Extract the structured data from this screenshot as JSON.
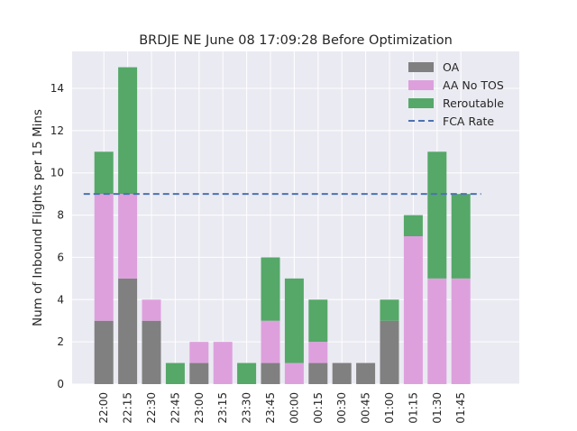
{
  "chart_data": {
    "type": "bar",
    "title": "BRDJE NE June 08 17:09:28 Before Optimization",
    "xlabel": "",
    "ylabel": "Num of Inbound Flights per 15 Mins",
    "ylim": [
      0,
      15.75
    ],
    "yticks": [
      0,
      2,
      4,
      6,
      8,
      10,
      12,
      14
    ],
    "grid": true,
    "legend_placement": "top-right",
    "stacked": true,
    "categories": [
      "22:00",
      "22:15",
      "22:30",
      "22:45",
      "23:00",
      "23:15",
      "23:30",
      "23:45",
      "00:00",
      "00:15",
      "00:30",
      "00:45",
      "01:00",
      "01:15",
      "01:30",
      "01:45"
    ],
    "series": [
      {
        "name": "OA",
        "color": "#808080",
        "values": [
          3,
          5,
          3,
          0,
          1,
          0,
          0,
          1,
          0,
          1,
          1,
          1,
          3,
          0,
          0,
          0
        ]
      },
      {
        "name": "AA No TOS",
        "color": "#dda0dd",
        "values": [
          6,
          4,
          1,
          0,
          1,
          2,
          0,
          2,
          1,
          1,
          0,
          0,
          0,
          7,
          5,
          5
        ]
      },
      {
        "name": "Reroutable",
        "color": "#55a868",
        "values": [
          2,
          6,
          0,
          1,
          0,
          0,
          1,
          3,
          4,
          2,
          0,
          0,
          1,
          1,
          6,
          4
        ]
      }
    ],
    "reference_line": {
      "name": "FCA Rate",
      "value": 9,
      "color": "#4c72b0",
      "style": "dashed"
    }
  }
}
